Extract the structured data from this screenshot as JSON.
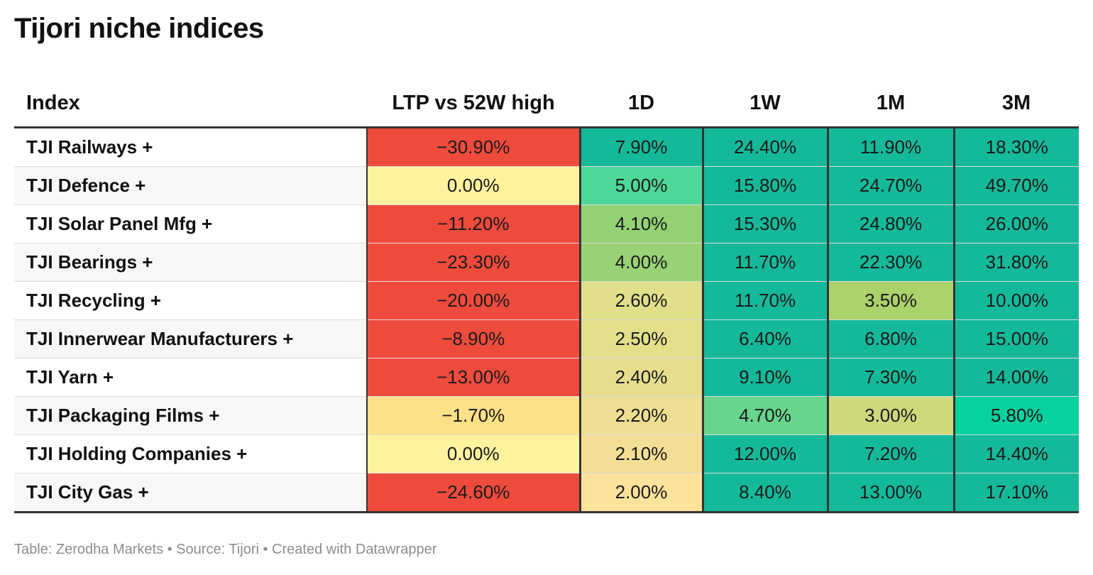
{
  "title": "Tijori niche indices",
  "footer": "Table: Zerodha Markets • Source: Tijori • Created with Datawrapper",
  "chart_data": {
    "type": "table",
    "title": "Tijori niche indices",
    "columns": [
      "Index",
      "LTP vs 52W high",
      "1D",
      "1W",
      "1M",
      "3M"
    ],
    "rows": [
      {
        "name": "TJI Railways +",
        "values": [
          "−30.90%",
          "7.90%",
          "24.40%",
          "11.90%",
          "18.30%"
        ],
        "colors": [
          "#ef4b3d",
          "#14b99a",
          "#14b99a",
          "#14b99a",
          "#14b99a"
        ]
      },
      {
        "name": "TJI Defence +",
        "values": [
          "0.00%",
          "5.00%",
          "15.80%",
          "24.70%",
          "49.70%"
        ],
        "colors": [
          "#fdf29e",
          "#4dd897",
          "#14b99a",
          "#14b99a",
          "#14b99a"
        ]
      },
      {
        "name": "TJI Solar Panel Mfg +",
        "values": [
          "−11.20%",
          "4.10%",
          "15.30%",
          "24.80%",
          "26.00%"
        ],
        "colors": [
          "#ef4b3d",
          "#93d173",
          "#14b99a",
          "#14b99a",
          "#14b99a"
        ]
      },
      {
        "name": "TJI Bearings +",
        "values": [
          "−23.30%",
          "4.00%",
          "11.70%",
          "22.30%",
          "31.80%"
        ],
        "colors": [
          "#ef4b3d",
          "#98d274",
          "#14b99a",
          "#14b99a",
          "#14b99a"
        ]
      },
      {
        "name": "TJI Recycling +",
        "values": [
          "−20.00%",
          "2.60%",
          "11.70%",
          "3.50%",
          "10.00%"
        ],
        "colors": [
          "#ef4b3d",
          "#e1df8a",
          "#14b99a",
          "#acd26b",
          "#14b99a"
        ]
      },
      {
        "name": "TJI Innerwear Manufacturers +",
        "values": [
          "−8.90%",
          "2.50%",
          "6.40%",
          "6.80%",
          "15.00%"
        ],
        "colors": [
          "#ef4b3d",
          "#e3df8b",
          "#14b99a",
          "#14b99a",
          "#14b99a"
        ]
      },
      {
        "name": "TJI Yarn +",
        "values": [
          "−13.00%",
          "2.40%",
          "9.10%",
          "7.30%",
          "14.00%"
        ],
        "colors": [
          "#ef4b3d",
          "#e6de8c",
          "#14b99a",
          "#14b99a",
          "#14b99a"
        ]
      },
      {
        "name": "TJI Packaging Films +",
        "values": [
          "−1.70%",
          "2.20%",
          "4.70%",
          "3.00%",
          "5.80%"
        ],
        "colors": [
          "#fde087",
          "#eede91",
          "#67d58c",
          "#cfd87d",
          "#06d19f"
        ]
      },
      {
        "name": "TJI Holding Companies +",
        "values": [
          "0.00%",
          "2.10%",
          "12.00%",
          "7.20%",
          "14.40%"
        ],
        "colors": [
          "#fdf29e",
          "#f3de95",
          "#14b99a",
          "#14b99a",
          "#14b99a"
        ]
      },
      {
        "name": "TJI City Gas +",
        "values": [
          "−24.60%",
          "2.00%",
          "8.40%",
          "13.00%",
          "17.10%"
        ],
        "colors": [
          "#ef4b3d",
          "#fde29b",
          "#14b99a",
          "#14b99a",
          "#14b99a"
        ]
      }
    ]
  }
}
